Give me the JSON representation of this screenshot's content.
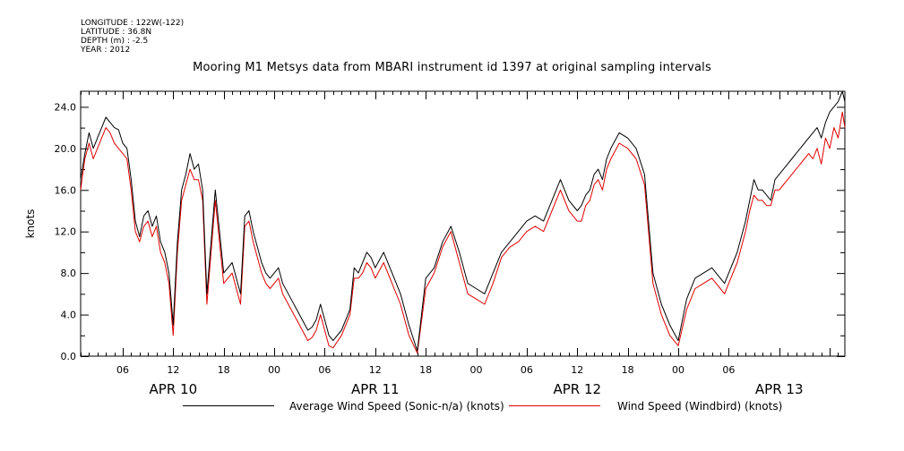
{
  "metadata": {
    "longitude": "LONGITUDE : 122W(-122)",
    "latitude": "LATITUDE : 36.8N",
    "depth": "DEPTH (m) : -2.5",
    "year": "YEAR : 2012"
  },
  "chart_data": {
    "type": "line",
    "title": "Mooring M1 Metsys data from MBARI instrument id 1397 at original sampling intervals",
    "ylabel": "knots",
    "xlabel": "",
    "ylim": [
      0,
      25.5
    ],
    "yticks": [
      "0.0",
      "4.0",
      "8.0",
      "12.0",
      "16.0",
      "20.0",
      "24.0"
    ],
    "x_unit": "hours since APR 10 00:00",
    "xlim": [
      1.0,
      91.8
    ],
    "xticks": [
      {
        "hour": 6,
        "label": "06"
      },
      {
        "hour": 12,
        "label": "12"
      },
      {
        "hour": 18,
        "label": "18"
      },
      {
        "hour": 24,
        "label": "00"
      },
      {
        "hour": 30,
        "label": "06"
      },
      {
        "hour": 36,
        "label": "12"
      },
      {
        "hour": 42,
        "label": "18"
      },
      {
        "hour": 48,
        "label": "00"
      },
      {
        "hour": 54,
        "label": "06"
      },
      {
        "hour": 60,
        "label": "12"
      },
      {
        "hour": 66,
        "label": "18"
      },
      {
        "hour": 72,
        "label": "00"
      },
      {
        "hour": 78,
        "label": "06"
      }
    ],
    "day_labels": [
      {
        "hour": 12,
        "label": "APR 10"
      },
      {
        "hour": 36,
        "label": "APR 11"
      },
      {
        "hour": 60,
        "label": "APR 12"
      },
      {
        "hour": 84,
        "label": "APR 13"
      }
    ],
    "x": [
      1.0,
      1.5,
      2.0,
      2.5,
      3.0,
      3.5,
      4.0,
      4.5,
      5.0,
      5.5,
      6.0,
      6.5,
      7.0,
      7.5,
      8.0,
      8.5,
      9.0,
      9.5,
      10.0,
      10.5,
      11.0,
      11.5,
      12.0,
      12.5,
      13.0,
      13.5,
      14.0,
      14.5,
      15.0,
      15.5,
      16.0,
      17.0,
      18.0,
      19.0,
      20.0,
      20.5,
      21.0,
      21.5,
      22.0,
      22.5,
      23.0,
      23.5,
      24.0,
      24.5,
      25.0,
      26.0,
      27.0,
      28.0,
      28.5,
      29.0,
      29.5,
      30.0,
      30.5,
      31.0,
      32.0,
      33.0,
      33.5,
      34.0,
      34.5,
      35.0,
      35.5,
      36.0,
      37.0,
      38.0,
      39.0,
      40.0,
      41.0,
      42.0,
      43.0,
      44.0,
      45.0,
      46.0,
      47.0,
      48.0,
      49.0,
      50.0,
      51.0,
      52.0,
      53.0,
      54.0,
      55.0,
      56.0,
      57.0,
      58.0,
      59.0,
      60.0,
      60.5,
      61.0,
      61.5,
      62.0,
      62.5,
      63.0,
      63.5,
      64.0,
      65.0,
      66.0,
      67.0,
      68.0,
      69.0,
      70.0,
      71.0,
      72.0,
      73.0,
      74.0,
      75.0,
      76.0,
      77.0,
      77.5,
      78.0,
      78.5,
      79.0,
      79.5,
      80.0,
      80.5,
      81.0,
      81.5,
      82.0,
      82.5,
      83.0,
      83.5,
      84.0,
      84.5,
      85.0,
      85.5,
      86.0,
      86.5,
      87.0,
      87.5,
      88.0,
      88.5,
      89.0,
      89.5,
      90.0,
      90.5,
      91.0,
      91.5,
      91.8
    ],
    "series": [
      {
        "name": "Average Wind Speed (Sonic-n/a) (knots)",
        "color": "#000000",
        "values": [
          17.0,
          19.5,
          21.5,
          20.0,
          21.0,
          22.0,
          23.0,
          22.5,
          22.0,
          21.8,
          20.5,
          20.0,
          17.0,
          13.0,
          11.5,
          13.5,
          14.0,
          12.5,
          13.5,
          11.0,
          10.0,
          8.0,
          3.0,
          11.0,
          16.0,
          17.5,
          19.5,
          18.0,
          18.5,
          16.0,
          6.0,
          16.0,
          8.0,
          9.0,
          6.0,
          13.5,
          14.0,
          12.0,
          10.5,
          9.0,
          8.0,
          7.5,
          8.0,
          8.5,
          7.0,
          5.5,
          4.0,
          2.5,
          2.8,
          3.5,
          5.0,
          3.5,
          2.0,
          1.5,
          2.5,
          4.5,
          8.5,
          8.0,
          9.0,
          10.0,
          9.5,
          8.5,
          10.0,
          8.0,
          6.0,
          3.0,
          0.5,
          7.5,
          8.5,
          11.0,
          12.5,
          10.0,
          7.0,
          6.5,
          6.0,
          8.0,
          10.0,
          11.0,
          12.0,
          13.0,
          13.5,
          13.0,
          15.0,
          17.0,
          15.0,
          14.0,
          14.5,
          15.5,
          16.0,
          17.5,
          18.0,
          17.0,
          19.0,
          20.0,
          21.5,
          21.0,
          20.0,
          17.5,
          8.0,
          5.0,
          3.0,
          1.5,
          5.5,
          7.5,
          8.0,
          8.5,
          7.5,
          7.0,
          8.0,
          9.0,
          10.0,
          11.5,
          13.0,
          15.0,
          17.0,
          16.0,
          16.0,
          15.5,
          15.0,
          17.0,
          17.5,
          18.0,
          18.5,
          19.0,
          19.5,
          20.0,
          20.5,
          21.0,
          21.5,
          22.0,
          21.0,
          22.5,
          23.5,
          24.0,
          24.5,
          25.5,
          24.5
        ]
      },
      {
        "name": "Wind Speed (Windbird) (knots)",
        "color": "#e00000",
        "values": [
          16.0,
          19.0,
          20.5,
          19.0,
          20.0,
          21.0,
          22.0,
          21.5,
          20.5,
          20.0,
          19.5,
          19.0,
          16.0,
          12.0,
          11.0,
          12.5,
          13.0,
          11.5,
          12.5,
          10.0,
          9.0,
          7.0,
          2.0,
          10.0,
          15.0,
          16.5,
          18.0,
          17.0,
          17.0,
          15.0,
          5.0,
          15.0,
          7.0,
          8.0,
          5.0,
          12.5,
          13.0,
          11.0,
          9.5,
          8.0,
          7.0,
          6.5,
          7.0,
          7.5,
          6.0,
          4.5,
          3.0,
          1.5,
          1.8,
          2.5,
          4.0,
          2.5,
          1.0,
          0.8,
          2.0,
          4.0,
          7.5,
          7.5,
          8.0,
          9.0,
          8.5,
          7.5,
          9.0,
          7.0,
          5.0,
          2.0,
          0.3,
          6.5,
          8.0,
          10.5,
          12.0,
          9.0,
          6.0,
          5.5,
          5.0,
          7.0,
          9.5,
          10.5,
          11.0,
          12.0,
          12.5,
          12.0,
          14.0,
          16.0,
          14.0,
          13.0,
          13.0,
          14.5,
          15.0,
          16.5,
          17.0,
          16.0,
          18.0,
          19.0,
          20.5,
          20.0,
          19.0,
          16.5,
          7.0,
          4.0,
          2.0,
          1.0,
          4.5,
          6.5,
          7.0,
          7.5,
          6.5,
          6.0,
          7.0,
          8.0,
          9.0,
          10.5,
          12.0,
          14.0,
          15.5,
          15.0,
          15.0,
          14.5,
          14.5,
          16.0,
          16.0,
          16.5,
          17.0,
          17.5,
          18.0,
          18.5,
          19.0,
          19.5,
          19.0,
          20.0,
          18.5,
          21.0,
          20.0,
          22.0,
          21.0,
          23.5,
          22.0
        ]
      }
    ],
    "legend_placement": "bottom",
    "grid": false
  }
}
